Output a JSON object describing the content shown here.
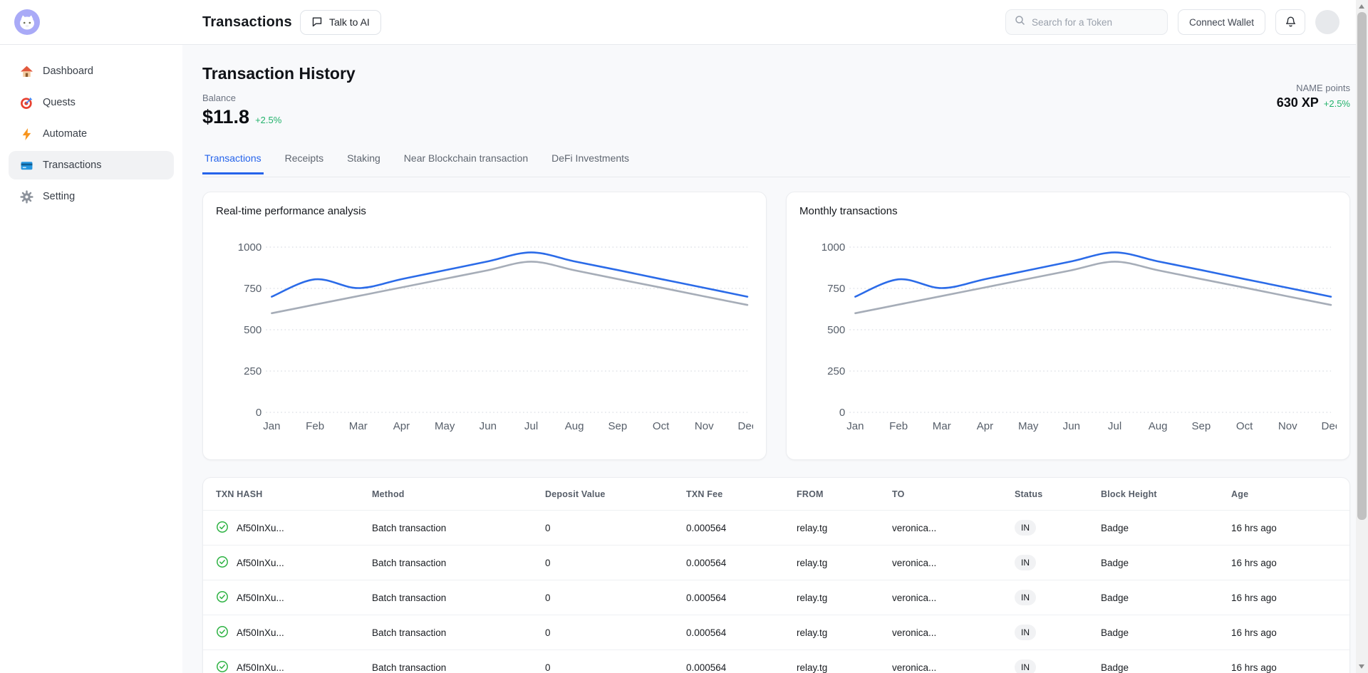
{
  "header": {
    "title": "Transactions",
    "talk_to_ai_label": "Talk to AI",
    "search_placeholder": "Search for a Token",
    "connect_wallet_label": "Connect Wallet"
  },
  "sidebar": {
    "items": [
      {
        "id": "dashboard",
        "icon": "home-icon",
        "label": "Dashboard",
        "active": false
      },
      {
        "id": "quests",
        "icon": "target-icon",
        "label": "Quests",
        "active": false
      },
      {
        "id": "automate",
        "icon": "lightning-icon",
        "label": "Automate",
        "active": false
      },
      {
        "id": "transactions",
        "icon": "card-icon",
        "label": "Transactions",
        "active": true
      },
      {
        "id": "setting",
        "icon": "gear-icon",
        "label": "Setting",
        "active": false
      }
    ]
  },
  "page": {
    "title": "Transaction History",
    "balance": {
      "label": "Balance",
      "value": "$11.8",
      "change": "+2.5%"
    },
    "points": {
      "label": "NAME points",
      "value": "630 XP",
      "change": "+2.5%"
    }
  },
  "tabs": [
    {
      "label": "Transactions",
      "active": true
    },
    {
      "label": "Receipts",
      "active": false
    },
    {
      "label": "Staking",
      "active": false
    },
    {
      "label": "Near Blockchain transaction",
      "active": false
    },
    {
      "label": "DeFi Investments",
      "active": false
    }
  ],
  "chart_data": [
    {
      "type": "line",
      "title": "Real-time performance analysis",
      "x": [
        "Jan",
        "Feb",
        "Mar",
        "Apr",
        "May",
        "Jun",
        "Jul",
        "Aug",
        "Sep",
        "Oct",
        "Nov",
        "Dec"
      ],
      "series": [
        {
          "name": "primary",
          "color": "#2b6be8",
          "values": [
            700,
            805,
            752,
            806,
            860,
            914,
            968,
            914,
            861,
            807,
            754,
            700
          ]
        },
        {
          "name": "secondary",
          "color": "#a6adb8",
          "values": [
            600,
            652,
            704,
            756,
            808,
            860,
            912,
            860,
            807,
            755,
            702,
            650
          ]
        }
      ],
      "ylim": [
        0,
        1000
      ],
      "yticks": [
        0,
        250,
        500,
        750,
        1000
      ],
      "grid": "horizontal-dotted",
      "legend": "none"
    },
    {
      "type": "line",
      "title": "Monthly transactions",
      "x": [
        "Jan",
        "Feb",
        "Mar",
        "Apr",
        "May",
        "Jun",
        "Jul",
        "Aug",
        "Sep",
        "Oct",
        "Nov",
        "Dec"
      ],
      "series": [
        {
          "name": "primary",
          "color": "#2b6be8",
          "values": [
            700,
            805,
            752,
            806,
            860,
            914,
            968,
            914,
            861,
            807,
            754,
            700
          ]
        },
        {
          "name": "secondary",
          "color": "#a6adb8",
          "values": [
            600,
            652,
            704,
            756,
            808,
            860,
            912,
            860,
            807,
            755,
            702,
            650
          ]
        }
      ],
      "ylim": [
        0,
        1000
      ],
      "yticks": [
        0,
        250,
        500,
        750,
        1000
      ],
      "grid": "horizontal-dotted",
      "legend": "none"
    }
  ],
  "table": {
    "columns": [
      "TXN HASH",
      "Method",
      "Deposit Value",
      "TXN Fee",
      "FROM",
      "TO",
      "Status",
      "Block Height",
      "Age"
    ],
    "rows": [
      {
        "hash": "Af50InXu...",
        "method": "Batch transaction",
        "deposit_value": "0",
        "txn_fee": "0.000564",
        "from": "relay.tg",
        "to": "veronica...",
        "status": "IN",
        "block_height": "Badge",
        "age": "16 hrs ago"
      },
      {
        "hash": "Af50InXu...",
        "method": "Batch transaction",
        "deposit_value": "0",
        "txn_fee": "0.000564",
        "from": "relay.tg",
        "to": "veronica...",
        "status": "IN",
        "block_height": "Badge",
        "age": "16 hrs ago"
      },
      {
        "hash": "Af50InXu...",
        "method": "Batch transaction",
        "deposit_value": "0",
        "txn_fee": "0.000564",
        "from": "relay.tg",
        "to": "veronica...",
        "status": "IN",
        "block_height": "Badge",
        "age": "16 hrs ago"
      },
      {
        "hash": "Af50InXu...",
        "method": "Batch transaction",
        "deposit_value": "0",
        "txn_fee": "0.000564",
        "from": "relay.tg",
        "to": "veronica...",
        "status": "IN",
        "block_height": "Badge",
        "age": "16 hrs ago"
      },
      {
        "hash": "Af50InXu...",
        "method": "Batch transaction",
        "deposit_value": "0",
        "txn_fee": "0.000564",
        "from": "relay.tg",
        "to": "veronica...",
        "status": "IN",
        "block_height": "Badge",
        "age": "16 hrs ago"
      }
    ]
  },
  "colors": {
    "accent": "#2563eb",
    "positive": "#22b26b",
    "chart_primary": "#2b6be8",
    "chart_secondary": "#a6adb8",
    "status_pill_bg": "#f1f2f4"
  }
}
